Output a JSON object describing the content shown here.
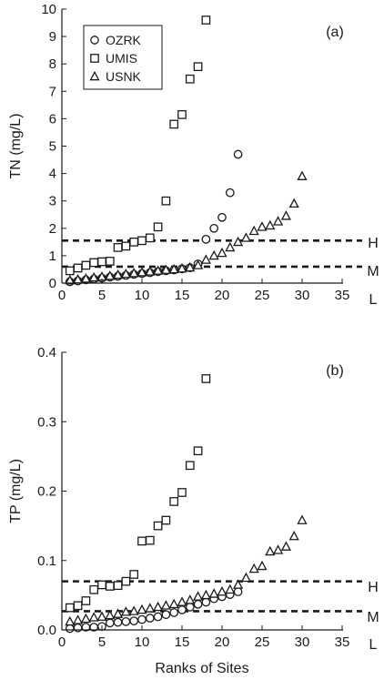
{
  "chart_data": [
    {
      "type": "scatter",
      "panel_label": "(a)",
      "xlabel": "",
      "ylabel": "TN (mg/L)",
      "xlim": [
        0,
        35
      ],
      "ylim": [
        0,
        10
      ],
      "xticks": [
        0,
        5,
        10,
        15,
        20,
        25,
        30,
        35
      ],
      "yticks": [
        0,
        1,
        2,
        3,
        4,
        5,
        6,
        7,
        8,
        9,
        10
      ],
      "legend": {
        "position": "top-left",
        "entries": [
          "OZRK",
          "UMIS",
          "USNK"
        ]
      },
      "thresholds": [
        {
          "label": "H",
          "value": 1.55
        },
        {
          "label": "M",
          "value": 0.6
        },
        {
          "label": "L",
          "value": 0.6
        }
      ],
      "series": [
        {
          "name": "OZRK",
          "marker": "circle",
          "x": [
            1,
            2,
            3,
            4,
            5,
            6,
            7,
            8,
            9,
            10,
            11,
            12,
            13,
            14,
            15,
            16,
            17,
            18,
            19,
            20,
            21,
            22
          ],
          "y": [
            0.05,
            0.08,
            0.12,
            0.15,
            0.18,
            0.22,
            0.25,
            0.28,
            0.32,
            0.35,
            0.38,
            0.42,
            0.45,
            0.48,
            0.52,
            0.56,
            0.7,
            1.6,
            2.0,
            2.4,
            3.3,
            4.7
          ]
        },
        {
          "name": "UMIS",
          "marker": "square",
          "x": [
            1,
            2,
            3,
            4,
            5,
            6,
            7,
            8,
            9,
            10,
            11,
            12,
            13,
            14,
            15,
            16,
            17,
            18
          ],
          "y": [
            0.45,
            0.55,
            0.65,
            0.75,
            0.78,
            0.8,
            1.3,
            1.35,
            1.5,
            1.55,
            1.65,
            2.05,
            3.0,
            5.8,
            6.15,
            7.45,
            7.9,
            9.6
          ]
        },
        {
          "name": "USNK",
          "marker": "triangle",
          "x": [
            1,
            2,
            3,
            4,
            5,
            6,
            7,
            8,
            9,
            10,
            11,
            12,
            13,
            14,
            15,
            16,
            17,
            18,
            19,
            20,
            21,
            22,
            23,
            24,
            25,
            26,
            27,
            28,
            29,
            30
          ],
          "y": [
            0.1,
            0.13,
            0.16,
            0.2,
            0.23,
            0.26,
            0.3,
            0.33,
            0.36,
            0.39,
            0.42,
            0.45,
            0.48,
            0.5,
            0.53,
            0.57,
            0.65,
            0.85,
            1.0,
            1.1,
            1.3,
            1.5,
            1.65,
            1.9,
            2.05,
            2.1,
            2.25,
            2.45,
            2.9,
            3.9
          ]
        }
      ]
    },
    {
      "type": "scatter",
      "panel_label": "(b)",
      "xlabel": "Ranks of Sites",
      "ylabel": "TP (mg/L)",
      "xlim": [
        0,
        35
      ],
      "ylim": [
        0,
        0.4
      ],
      "xticks": [
        0,
        5,
        10,
        15,
        20,
        25,
        30,
        35
      ],
      "yticks": [
        0.0,
        0.1,
        0.2,
        0.3,
        0.4
      ],
      "thresholds": [
        {
          "label": "H",
          "value": 0.07
        },
        {
          "label": "M",
          "value": 0.027
        },
        {
          "label": "L",
          "value": 0.027
        }
      ],
      "series": [
        {
          "name": "OZRK",
          "marker": "circle",
          "x": [
            1,
            2,
            3,
            4,
            5,
            6,
            7,
            8,
            9,
            10,
            11,
            12,
            13,
            14,
            15,
            16,
            17,
            18,
            19,
            20,
            21,
            22
          ],
          "y": [
            0.002,
            0.003,
            0.004,
            0.004,
            0.005,
            0.01,
            0.011,
            0.012,
            0.013,
            0.015,
            0.017,
            0.019,
            0.022,
            0.025,
            0.029,
            0.033,
            0.037,
            0.04,
            0.045,
            0.048,
            0.051,
            0.055
          ]
        },
        {
          "name": "UMIS",
          "marker": "square",
          "x": [
            1,
            2,
            3,
            4,
            5,
            6,
            7,
            8,
            9,
            10,
            11,
            12,
            13,
            14,
            15,
            16,
            17,
            18
          ],
          "y": [
            0.032,
            0.035,
            0.042,
            0.058,
            0.065,
            0.063,
            0.064,
            0.07,
            0.08,
            0.128,
            0.129,
            0.15,
            0.158,
            0.185,
            0.198,
            0.237,
            0.258,
            0.362
          ]
        },
        {
          "name": "USNK",
          "marker": "triangle",
          "x": [
            1,
            2,
            3,
            4,
            5,
            6,
            7,
            8,
            9,
            10,
            11,
            12,
            13,
            14,
            15,
            16,
            17,
            18,
            19,
            20,
            21,
            22,
            23,
            24,
            25,
            26,
            27,
            28,
            29,
            30
          ],
          "y": [
            0.012,
            0.014,
            0.016,
            0.018,
            0.019,
            0.021,
            0.023,
            0.026,
            0.027,
            0.029,
            0.031,
            0.033,
            0.035,
            0.037,
            0.04,
            0.043,
            0.048,
            0.05,
            0.052,
            0.055,
            0.058,
            0.065,
            0.075,
            0.088,
            0.092,
            0.113,
            0.115,
            0.12,
            0.135,
            0.158
          ]
        }
      ]
    }
  ]
}
